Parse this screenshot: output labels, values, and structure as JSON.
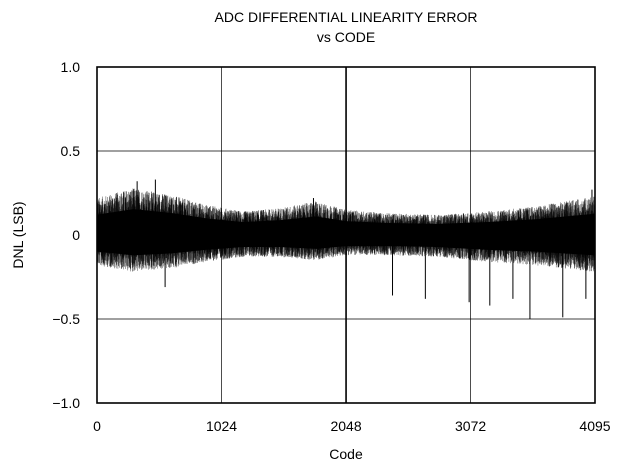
{
  "chart_data": {
    "type": "line",
    "title_line1": "ADC DIFFERENTIAL LINEARITY ERROR",
    "title_line2": "vs CODE",
    "xlabel": "Code",
    "ylabel": "DNL (LSB)",
    "xlim": [
      0,
      4095
    ],
    "ylim": [
      -1.0,
      1.0
    ],
    "grid": true,
    "x_ticks": [
      0,
      1024,
      2048,
      3072,
      4095
    ],
    "x_tick_labels": [
      "0",
      "1024",
      "2048",
      "3072",
      "4095"
    ],
    "y_ticks": [
      1.0,
      0.5,
      0,
      -0.5,
      -1.0
    ],
    "y_tick_labels": [
      "1.0",
      "0.5",
      "0",
      "−0.5",
      "−1.0"
    ],
    "series_color": "#000000",
    "envelope": [
      {
        "x": 0,
        "upper": 0.22,
        "lower": -0.18
      },
      {
        "x": 300,
        "upper": 0.28,
        "lower": -0.22
      },
      {
        "x": 600,
        "upper": 0.24,
        "lower": -0.2
      },
      {
        "x": 900,
        "upper": 0.18,
        "lower": -0.16
      },
      {
        "x": 1200,
        "upper": 0.14,
        "lower": -0.13
      },
      {
        "x": 1500,
        "upper": 0.16,
        "lower": -0.13
      },
      {
        "x": 1800,
        "upper": 0.2,
        "lower": -0.15
      },
      {
        "x": 2048,
        "upper": 0.15,
        "lower": -0.12
      },
      {
        "x": 2400,
        "upper": 0.13,
        "lower": -0.12
      },
      {
        "x": 2800,
        "upper": 0.12,
        "lower": -0.13
      },
      {
        "x": 3200,
        "upper": 0.14,
        "lower": -0.16
      },
      {
        "x": 3600,
        "upper": 0.17,
        "lower": -0.18
      },
      {
        "x": 4095,
        "upper": 0.23,
        "lower": -0.22
      }
    ],
    "spikes": [
      {
        "x": 330,
        "y": 0.32
      },
      {
        "x": 480,
        "y": 0.33
      },
      {
        "x": 560,
        "y": -0.31
      },
      {
        "x": 1780,
        "y": 0.22
      },
      {
        "x": 2048,
        "y": -0.3
      },
      {
        "x": 2430,
        "y": -0.36
      },
      {
        "x": 2700,
        "y": -0.38
      },
      {
        "x": 3060,
        "y": -0.4
      },
      {
        "x": 3230,
        "y": -0.42
      },
      {
        "x": 3420,
        "y": -0.38
      },
      {
        "x": 3560,
        "y": -0.5
      },
      {
        "x": 3830,
        "y": -0.49
      },
      {
        "x": 4020,
        "y": -0.38
      },
      {
        "x": 4070,
        "y": 0.27
      }
    ]
  }
}
